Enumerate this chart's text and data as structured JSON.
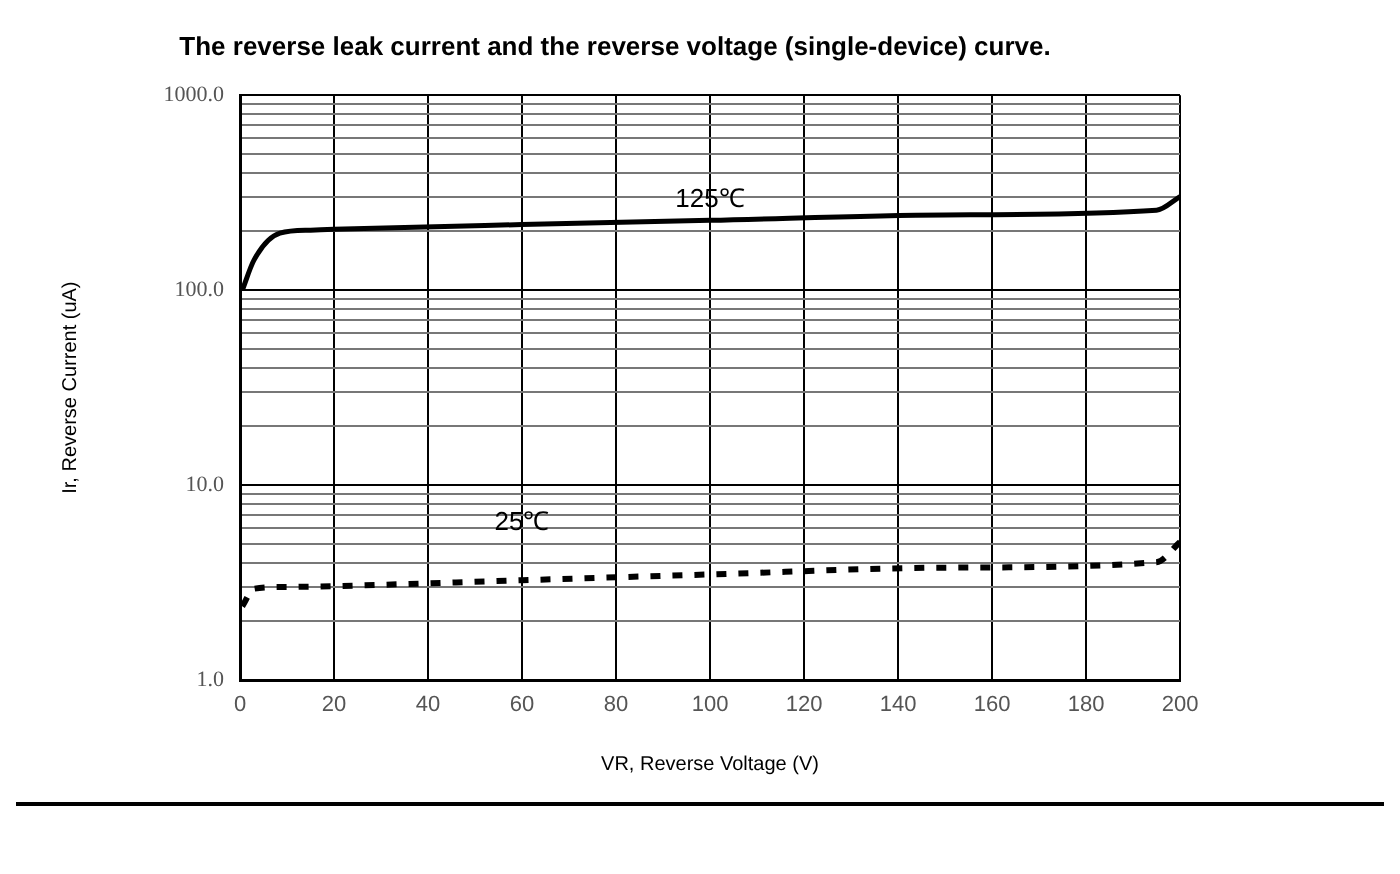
{
  "chart_data": {
    "type": "line",
    "title": "The reverse leak current and the reverse voltage (single-device) curve.",
    "xlabel": "VR, Reverse Voltage (V)",
    "ylabel": "Ir, Reverse Current (uA)",
    "log": "y",
    "grid": true,
    "marker": "none",
    "xlim": [
      0,
      200
    ],
    "xticks": [
      0,
      20,
      40,
      60,
      80,
      100,
      120,
      140,
      160,
      180,
      200
    ],
    "ylim": [
      1,
      1000
    ],
    "yticks": [
      {
        "value": 1,
        "label": "1.0"
      },
      {
        "value": 2,
        "label": null
      },
      {
        "value": 3,
        "label": null
      },
      {
        "value": 4,
        "label": null
      },
      {
        "value": 5,
        "label": null
      },
      {
        "value": 6,
        "label": null
      },
      {
        "value": 7,
        "label": null
      },
      {
        "value": 8,
        "label": null
      },
      {
        "value": 9,
        "label": null
      },
      {
        "value": 10,
        "label": "10.0"
      },
      {
        "value": 20,
        "label": null
      },
      {
        "value": 30,
        "label": null
      },
      {
        "value": 40,
        "label": null
      },
      {
        "value": 50,
        "label": null
      },
      {
        "value": 60,
        "label": null
      },
      {
        "value": 70,
        "label": null
      },
      {
        "value": 80,
        "label": null
      },
      {
        "value": 90,
        "label": null
      },
      {
        "value": 100,
        "label": "100.0"
      },
      {
        "value": 200,
        "label": null
      },
      {
        "value": 300,
        "label": null
      },
      {
        "value": 400,
        "label": null
      },
      {
        "value": 500,
        "label": null
      },
      {
        "value": 600,
        "label": null
      },
      {
        "value": 700,
        "label": null
      },
      {
        "value": 800,
        "label": null
      },
      {
        "value": 900,
        "label": null
      },
      {
        "value": 1000,
        "label": "1000.0"
      }
    ],
    "series": [
      {
        "name": "125℃",
        "color": "#000000",
        "line_style": "solid",
        "x": [
          0.5,
          3,
          8.5,
          15,
          20,
          60,
          100,
          150,
          195,
          200
        ],
        "values": [
          100,
          143,
          196,
          203,
          205,
          217,
          228,
          243,
          257,
          302
        ]
      },
      {
        "name": "25℃",
        "color": "#000000",
        "line_style": "dashed",
        "x": [
          0.5,
          3,
          10,
          20,
          60,
          100,
          150,
          195,
          200
        ],
        "values": [
          2.39,
          2.94,
          3.0,
          3.03,
          3.25,
          3.48,
          3.77,
          4.02,
          5.1
        ]
      }
    ]
  }
}
